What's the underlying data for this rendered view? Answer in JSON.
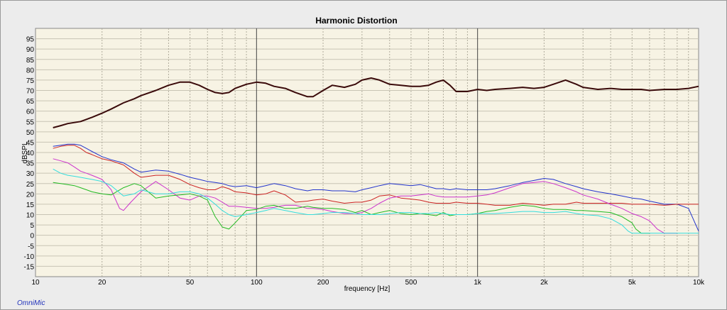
{
  "chart_data": {
    "type": "line",
    "title": "Harmonic Distortion",
    "xlabel": "frequency [Hz]",
    "ylabel": "dBSPL",
    "x_scale": "log",
    "xlim": [
      10,
      10000
    ],
    "ylim": [
      -20,
      100
    ],
    "x_ticks": [
      {
        "v": 10,
        "label": "10"
      },
      {
        "v": 20,
        "label": "20"
      },
      {
        "v": 50,
        "label": "50"
      },
      {
        "v": 100,
        "label": "100"
      },
      {
        "v": 200,
        "label": "200"
      },
      {
        "v": 500,
        "label": "500"
      },
      {
        "v": 1000,
        "label": "1k"
      },
      {
        "v": 2000,
        "label": "2k"
      },
      {
        "v": 5000,
        "label": "5k"
      },
      {
        "v": 10000,
        "label": "10k"
      }
    ],
    "y_ticks": [
      95,
      90,
      85,
      80,
      75,
      70,
      65,
      60,
      55,
      50,
      45,
      40,
      35,
      30,
      25,
      20,
      15,
      10,
      5,
      0,
      -5,
      -10,
      -15
    ],
    "grid": true,
    "legend": "none",
    "background_color": "#f7f3e4",
    "series": [
      {
        "color": "#3a0a0a",
        "width": 2,
        "x": [
          12,
          13,
          14,
          15,
          16,
          17,
          18,
          20,
          22,
          25,
          28,
          30,
          35,
          40,
          45,
          50,
          55,
          60,
          65,
          70,
          75,
          80,
          90,
          100,
          110,
          120,
          135,
          150,
          170,
          180,
          200,
          220,
          250,
          280,
          300,
          330,
          360,
          400,
          450,
          500,
          550,
          600,
          650,
          700,
          750,
          800,
          900,
          1000,
          1100,
          1200,
          1400,
          1600,
          1800,
          2000,
          2200,
          2500,
          2800,
          3000,
          3500,
          4000,
          4500,
          5000,
          5500,
          6000,
          7000,
          8000,
          9000,
          10000
        ],
        "y": [
          52,
          53,
          54,
          54.5,
          55,
          56,
          57,
          59,
          61,
          64,
          66,
          67.5,
          70,
          72.5,
          74,
          74,
          72.5,
          70.5,
          69,
          68.5,
          69,
          71,
          73,
          74,
          73.5,
          72,
          71,
          69,
          67,
          67,
          70,
          72.5,
          71.5,
          73,
          75,
          76,
          75,
          73,
          72.5,
          72,
          72,
          72.5,
          74,
          75,
          72.5,
          69.5,
          69.5,
          70.5,
          70,
          70.5,
          71,
          71.5,
          71,
          71.5,
          73,
          75,
          73,
          71.5,
          70.5,
          71,
          70.5,
          70.5,
          70.5,
          70,
          70.5,
          70.5,
          71,
          72
        ]
      },
      {
        "color": "#2233cc",
        "width": 1,
        "x": [
          12,
          13,
          14,
          15,
          16,
          17,
          18,
          20,
          22,
          25,
          28,
          30,
          35,
          40,
          45,
          50,
          55,
          60,
          65,
          70,
          75,
          80,
          90,
          100,
          110,
          120,
          135,
          150,
          170,
          180,
          200,
          220,
          250,
          280,
          300,
          330,
          360,
          400,
          450,
          500,
          550,
          600,
          650,
          700,
          750,
          800,
          900,
          1000,
          1100,
          1200,
          1400,
          1600,
          1800,
          2000,
          2200,
          2500,
          2800,
          3000,
          3500,
          4000,
          4500,
          5000,
          5500,
          6000,
          7000,
          8000,
          9000,
          10000
        ],
        "y": [
          43,
          43.5,
          44,
          44,
          43.5,
          42,
          40.5,
          38,
          36.5,
          35,
          32,
          30.5,
          31.5,
          31,
          29.5,
          28,
          27,
          26,
          25.5,
          25,
          24,
          23.5,
          24,
          23,
          24,
          25,
          24,
          22.5,
          21.5,
          22,
          22,
          21.5,
          21.5,
          21,
          22,
          23,
          24,
          25,
          24.5,
          24,
          24.5,
          23.5,
          22.5,
          22.5,
          22,
          22.5,
          22,
          22,
          22,
          22.5,
          24,
          25.5,
          26.5,
          27.5,
          27,
          25,
          23.5,
          22.5,
          21,
          20,
          19,
          18,
          17.5,
          16.5,
          15,
          15,
          13,
          2
        ]
      },
      {
        "color": "#cc2222",
        "width": 1,
        "x": [
          12,
          13,
          14,
          15,
          16,
          17,
          18,
          20,
          22,
          25,
          28,
          30,
          35,
          40,
          45,
          50,
          55,
          60,
          65,
          70,
          75,
          80,
          90,
          100,
          110,
          120,
          135,
          150,
          170,
          180,
          200,
          220,
          250,
          280,
          300,
          330,
          360,
          400,
          450,
          500,
          550,
          600,
          650,
          700,
          750,
          800,
          900,
          1000,
          1100,
          1200,
          1400,
          1600,
          1800,
          2000,
          2200,
          2500,
          2800,
          3000,
          3500,
          4000,
          4500,
          5000,
          5500,
          6000,
          7000,
          8000,
          9000,
          10000
        ],
        "y": [
          42,
          43,
          43.5,
          43.5,
          42,
          40,
          39,
          37,
          36,
          34,
          30,
          28,
          29,
          29,
          27,
          24.5,
          23,
          22,
          22,
          23.5,
          22.5,
          21,
          20.5,
          19.5,
          20,
          21.5,
          19.5,
          16,
          16.5,
          17,
          17.5,
          16.5,
          15.5,
          16,
          16,
          17,
          19,
          19.5,
          18,
          17.5,
          17,
          16,
          15.5,
          15.5,
          15.5,
          16,
          15.5,
          15.5,
          15,
          14.5,
          14.5,
          15.5,
          15,
          14.5,
          15,
          15,
          16,
          15.5,
          15.5,
          15.5,
          15.5,
          15,
          15,
          15,
          14.5,
          15,
          15,
          15
        ]
      },
      {
        "color": "#cc33cc",
        "width": 1,
        "x": [
          12,
          13,
          14,
          15,
          16,
          17,
          18,
          20,
          22,
          24,
          25,
          27,
          30,
          35,
          40,
          45,
          50,
          55,
          60,
          65,
          70,
          75,
          80,
          90,
          100,
          110,
          120,
          135,
          150,
          170,
          180,
          200,
          220,
          250,
          280,
          300,
          330,
          360,
          400,
          450,
          500,
          550,
          600,
          650,
          700,
          750,
          800,
          900,
          1000,
          1100,
          1200,
          1400,
          1600,
          1800,
          2000,
          2200,
          2500,
          2800,
          3000,
          3500,
          4000,
          4500,
          5000,
          5500,
          6000,
          6500,
          7000,
          7500,
          8000
        ],
        "y": [
          37,
          36,
          35,
          33,
          31,
          30,
          29,
          27,
          22,
          13,
          12,
          16,
          21,
          26,
          22,
          18,
          17,
          19,
          19,
          18,
          16,
          14,
          14,
          13.5,
          13,
          13,
          13.5,
          14.5,
          14.5,
          13,
          13,
          12.5,
          11.5,
          10.5,
          10.5,
          11,
          13,
          15.5,
          18,
          19,
          19,
          19.5,
          20,
          19,
          18.5,
          18.5,
          18.5,
          18.5,
          19,
          19.5,
          20.5,
          23,
          25,
          25.5,
          26,
          25,
          23,
          21,
          19.5,
          17.5,
          15,
          13,
          10.5,
          9,
          7,
          3,
          1,
          1,
          1
        ]
      },
      {
        "color": "#22bb22",
        "width": 1,
        "x": [
          12,
          13,
          14,
          15,
          16,
          17,
          18,
          20,
          22,
          25,
          28,
          30,
          35,
          40,
          45,
          50,
          55,
          60,
          65,
          70,
          75,
          80,
          90,
          100,
          110,
          120,
          135,
          150,
          170,
          180,
          200,
          220,
          250,
          280,
          300,
          330,
          360,
          400,
          450,
          500,
          550,
          600,
          650,
          700,
          750,
          800,
          900,
          1000,
          1100,
          1200,
          1400,
          1600,
          1800,
          2000,
          2200,
          2500,
          2800,
          3000,
          3500,
          4000,
          4500,
          5000,
          5200,
          5500,
          6000
        ],
        "y": [
          25.5,
          25,
          24.5,
          24,
          23,
          22,
          21,
          20,
          19.5,
          23,
          25,
          24,
          18,
          19,
          19.5,
          20,
          19,
          17,
          9,
          4,
          3,
          6,
          12,
          12.5,
          14,
          14.5,
          13,
          13,
          14,
          13.5,
          13,
          13,
          12.5,
          11,
          12,
          10,
          11,
          12,
          10.5,
          10,
          10.5,
          10,
          9.5,
          11,
          9.5,
          10,
          10,
          10.5,
          11.5,
          12,
          13.5,
          14.5,
          14,
          13,
          12.5,
          12.5,
          12,
          12,
          11.5,
          11,
          9,
          6,
          3,
          1,
          1
        ]
      },
      {
        "color": "#33dddd",
        "width": 1,
        "x": [
          12,
          13,
          14,
          15,
          16,
          17,
          18,
          20,
          22,
          25,
          28,
          30,
          35,
          40,
          45,
          50,
          55,
          60,
          65,
          70,
          75,
          80,
          90,
          100,
          110,
          120,
          135,
          150,
          170,
          180,
          200,
          220,
          250,
          280,
          300,
          330,
          360,
          400,
          450,
          500,
          550,
          600,
          650,
          700,
          750,
          800,
          900,
          1000,
          1100,
          1200,
          1400,
          1600,
          1800,
          2000,
          2200,
          2500,
          2800,
          3000,
          3500,
          4000,
          4500,
          4800,
          5000,
          5500,
          6000,
          7000,
          8000,
          9000,
          10000
        ],
        "y": [
          32,
          30,
          29,
          28.5,
          28,
          27.5,
          27,
          26,
          24,
          19,
          20,
          22,
          20,
          20,
          21,
          21,
          20,
          18,
          15,
          12,
          10,
          9,
          10,
          11,
          12,
          13,
          12,
          11,
          10,
          10,
          10.5,
          11,
          11,
          10.5,
          10,
          10,
          10,
          10.5,
          11,
          11,
          10.5,
          10.5,
          11,
          10.5,
          10,
          10,
          10,
          10.5,
          10.5,
          10.5,
          11,
          11.5,
          11.5,
          11,
          11,
          11.5,
          10.5,
          10,
          9.5,
          8,
          5,
          2,
          1,
          1,
          1,
          1,
          1,
          1,
          1
        ]
      }
    ]
  },
  "footer": {
    "brand": "OmniMic"
  }
}
